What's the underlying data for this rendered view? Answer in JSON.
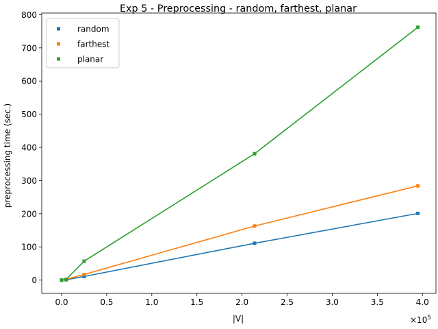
{
  "chart_data": {
    "type": "line",
    "title": "Exp 5 - Preprocessing - random, farthest, planar",
    "xlabel": "|V|",
    "ylabel": "preprocessing time (sec.)",
    "x_offset_label": "×10",
    "x_offset_exponent": "5",
    "x_scale": 100000,
    "xlim": [
      -0.22,
      4.15
    ],
    "ylim": [
      -40,
      805
    ],
    "x_ticks": [
      0.0,
      0.5,
      1.0,
      1.5,
      2.0,
      2.5,
      3.0,
      3.5,
      4.0
    ],
    "x_tick_labels": [
      "0.0",
      "0.5",
      "1.0",
      "1.5",
      "2.0",
      "2.5",
      "3.0",
      "3.5",
      "4.0"
    ],
    "y_ticks": [
      0,
      100,
      200,
      300,
      400,
      500,
      600,
      700,
      800
    ],
    "y_tick_labels": [
      "0",
      "100",
      "200",
      "300",
      "400",
      "500",
      "600",
      "700",
      "800"
    ],
    "grid": false,
    "legend_position": "top-left",
    "x": [
      0.0,
      0.05,
      0.25,
      2.14,
      3.95
    ],
    "series": [
      {
        "name": "random",
        "color": "#1f77b4",
        "values": [
          0,
          1,
          11,
          111,
          201
        ]
      },
      {
        "name": "farthest",
        "color": "#ff7f0e",
        "values": [
          0,
          2,
          17,
          163,
          284
        ]
      },
      {
        "name": "planar",
        "color": "#2ca02c",
        "values": [
          0,
          2,
          57,
          381,
          762
        ]
      }
    ]
  }
}
